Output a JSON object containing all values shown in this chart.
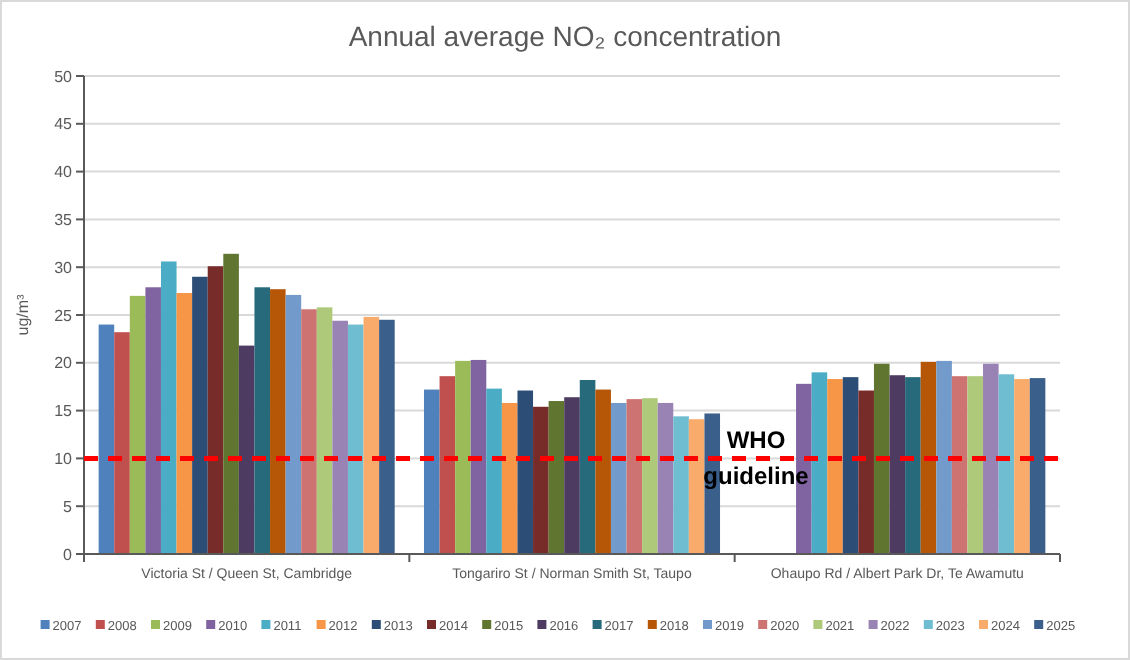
{
  "chart_data": {
    "type": "bar",
    "title": "Annual average NO₂ concentration",
    "ylabel": "ug/m³",
    "categories": [
      "Victoria St / Queen St, Cambridge",
      "Tongariro St / Norman Smith St, Taupo",
      "Ohaupo Rd / Albert Park Dr, Te Awamutu"
    ],
    "series": [
      {
        "name": "2007",
        "color": "#4f81bd",
        "values": [
          24.0,
          17.2,
          null
        ]
      },
      {
        "name": "2008",
        "color": "#c0504d",
        "values": [
          23.2,
          18.6,
          null
        ]
      },
      {
        "name": "2009",
        "color": "#9bbb59",
        "values": [
          27.0,
          20.2,
          null
        ]
      },
      {
        "name": "2010",
        "color": "#8064a2",
        "values": [
          27.9,
          20.3,
          17.8
        ]
      },
      {
        "name": "2011",
        "color": "#4bacc6",
        "values": [
          30.6,
          17.3,
          19.0
        ]
      },
      {
        "name": "2012",
        "color": "#f79646",
        "values": [
          27.3,
          15.8,
          18.3
        ]
      },
      {
        "name": "2013",
        "color": "#2c4d75",
        "values": [
          29.0,
          17.1,
          18.5
        ]
      },
      {
        "name": "2014",
        "color": "#772c2a",
        "values": [
          30.1,
          15.4,
          17.1
        ]
      },
      {
        "name": "2015",
        "color": "#5f7530",
        "values": [
          31.4,
          16.0,
          19.9
        ]
      },
      {
        "name": "2016",
        "color": "#4d3b62",
        "values": [
          21.8,
          16.4,
          18.7
        ]
      },
      {
        "name": "2017",
        "color": "#276a7c",
        "values": [
          27.9,
          18.2,
          18.5
        ]
      },
      {
        "name": "2018",
        "color": "#b65708",
        "values": [
          27.7,
          17.2,
          20.1
        ]
      },
      {
        "name": "2019",
        "color": "#729aca",
        "values": [
          27.1,
          15.8,
          20.2
        ]
      },
      {
        "name": "2020",
        "color": "#cd7371",
        "values": [
          25.6,
          16.2,
          18.6
        ]
      },
      {
        "name": "2021",
        "color": "#afc97a",
        "values": [
          25.8,
          16.3,
          18.6
        ]
      },
      {
        "name": "2022",
        "color": "#9983b5",
        "values": [
          24.4,
          15.8,
          19.9
        ]
      },
      {
        "name": "2023",
        "color": "#6fbdd1",
        "values": [
          24.0,
          14.4,
          18.8
        ]
      },
      {
        "name": "2024",
        "color": "#f9ab6b",
        "values": [
          24.8,
          14.1,
          18.3
        ]
      },
      {
        "name": "2025",
        "color": "#3a5f8b",
        "values": [
          24.5,
          14.7,
          18.4
        ]
      }
    ],
    "ylim": [
      0,
      50
    ],
    "yticks": [
      0,
      5,
      10,
      15,
      20,
      25,
      30,
      35,
      40,
      45,
      50
    ],
    "grid": "y",
    "legend": "bottom",
    "ref_lines": [
      {
        "axis": "y",
        "value": 10,
        "label": "WHO guideline",
        "color": "#ff0000",
        "line_style": "dashed"
      }
    ]
  }
}
